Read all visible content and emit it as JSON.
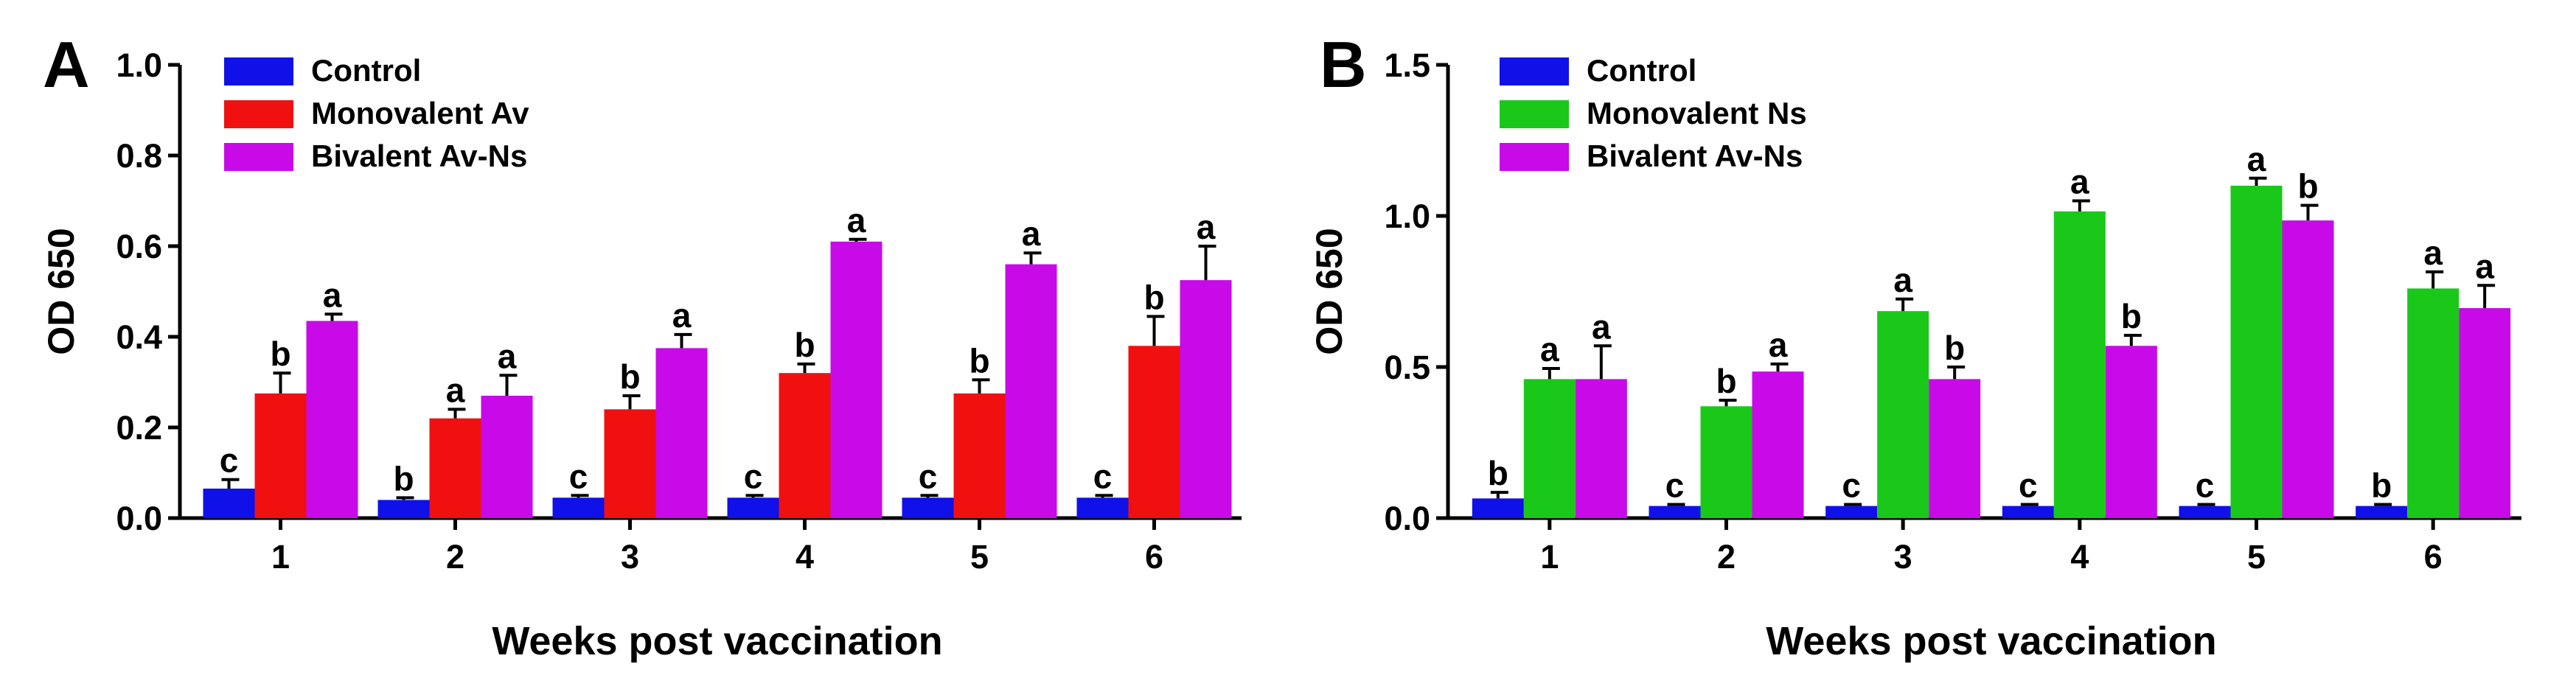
{
  "chart_data": [
    {
      "panel": "A",
      "type": "bar",
      "xlabel": "Weeks post vaccination",
      "ylabel": "OD 650",
      "ylim": [
        0,
        1.0
      ],
      "yticks": [
        "0.0",
        "0.2",
        "0.4",
        "0.6",
        "0.8",
        "1.0"
      ],
      "yticks_values": [
        0,
        0.2,
        0.4,
        0.6,
        0.8,
        1.0
      ],
      "categories": [
        "1",
        "2",
        "3",
        "4",
        "5",
        "6"
      ],
      "legend_position": "top-left",
      "series": [
        {
          "name": "Control",
          "color": "#1010e8",
          "values": [
            0.065,
            0.04,
            0.045,
            0.045,
            0.045,
            0.045
          ],
          "errors": [
            0.02,
            0.005,
            0.005,
            0.005,
            0.005,
            0.005
          ],
          "labels": [
            "c",
            "b",
            "c",
            "c",
            "c",
            "c"
          ]
        },
        {
          "name": "Monovalent Av",
          "color": "#f01010",
          "values": [
            0.275,
            0.22,
            0.24,
            0.32,
            0.275,
            0.38
          ],
          "errors": [
            0.045,
            0.02,
            0.03,
            0.02,
            0.03,
            0.065
          ],
          "labels": [
            "b",
            "a",
            "b",
            "b",
            "b",
            "b"
          ]
        },
        {
          "name": "Bivalent Av-Ns",
          "color": "#c80ae8",
          "values": [
            0.435,
            0.27,
            0.375,
            0.61,
            0.56,
            0.525
          ],
          "errors": [
            0.015,
            0.045,
            0.03,
            0.005,
            0.025,
            0.075
          ],
          "labels": [
            "a",
            "a",
            "a",
            "a",
            "a",
            "a"
          ]
        }
      ]
    },
    {
      "panel": "B",
      "type": "bar",
      "xlabel": "Weeks post vaccination",
      "ylabel": "OD 650",
      "ylim": [
        0,
        1.5
      ],
      "yticks": [
        "0.0",
        "0.5",
        "1.0",
        "1.5"
      ],
      "yticks_values": [
        0,
        0.5,
        1.0,
        1.5
      ],
      "categories": [
        "1",
        "2",
        "3",
        "4",
        "5",
        "6"
      ],
      "legend_position": "top-left",
      "series": [
        {
          "name": "Control",
          "color": "#1010e8",
          "values": [
            0.065,
            0.04,
            0.04,
            0.04,
            0.04,
            0.04
          ],
          "errors": [
            0.02,
            0.005,
            0.005,
            0.005,
            0.005,
            0.005
          ],
          "labels": [
            "b",
            "c",
            "c",
            "c",
            "c",
            "b"
          ]
        },
        {
          "name": "Monovalent Ns",
          "color": "#1ac81a",
          "values": [
            0.46,
            0.37,
            0.685,
            1.015,
            1.1,
            0.76
          ],
          "errors": [
            0.035,
            0.02,
            0.04,
            0.035,
            0.025,
            0.055
          ],
          "labels": [
            "a",
            "b",
            "a",
            "a",
            "a",
            "a"
          ]
        },
        {
          "name": "Bivalent Av-Ns",
          "color": "#c80ae8",
          "values": [
            0.46,
            0.485,
            0.46,
            0.57,
            0.985,
            0.695
          ],
          "errors": [
            0.11,
            0.025,
            0.04,
            0.035,
            0.05,
            0.075
          ],
          "labels": [
            "a",
            "a",
            "b",
            "b",
            "b",
            "a"
          ]
        }
      ]
    }
  ]
}
